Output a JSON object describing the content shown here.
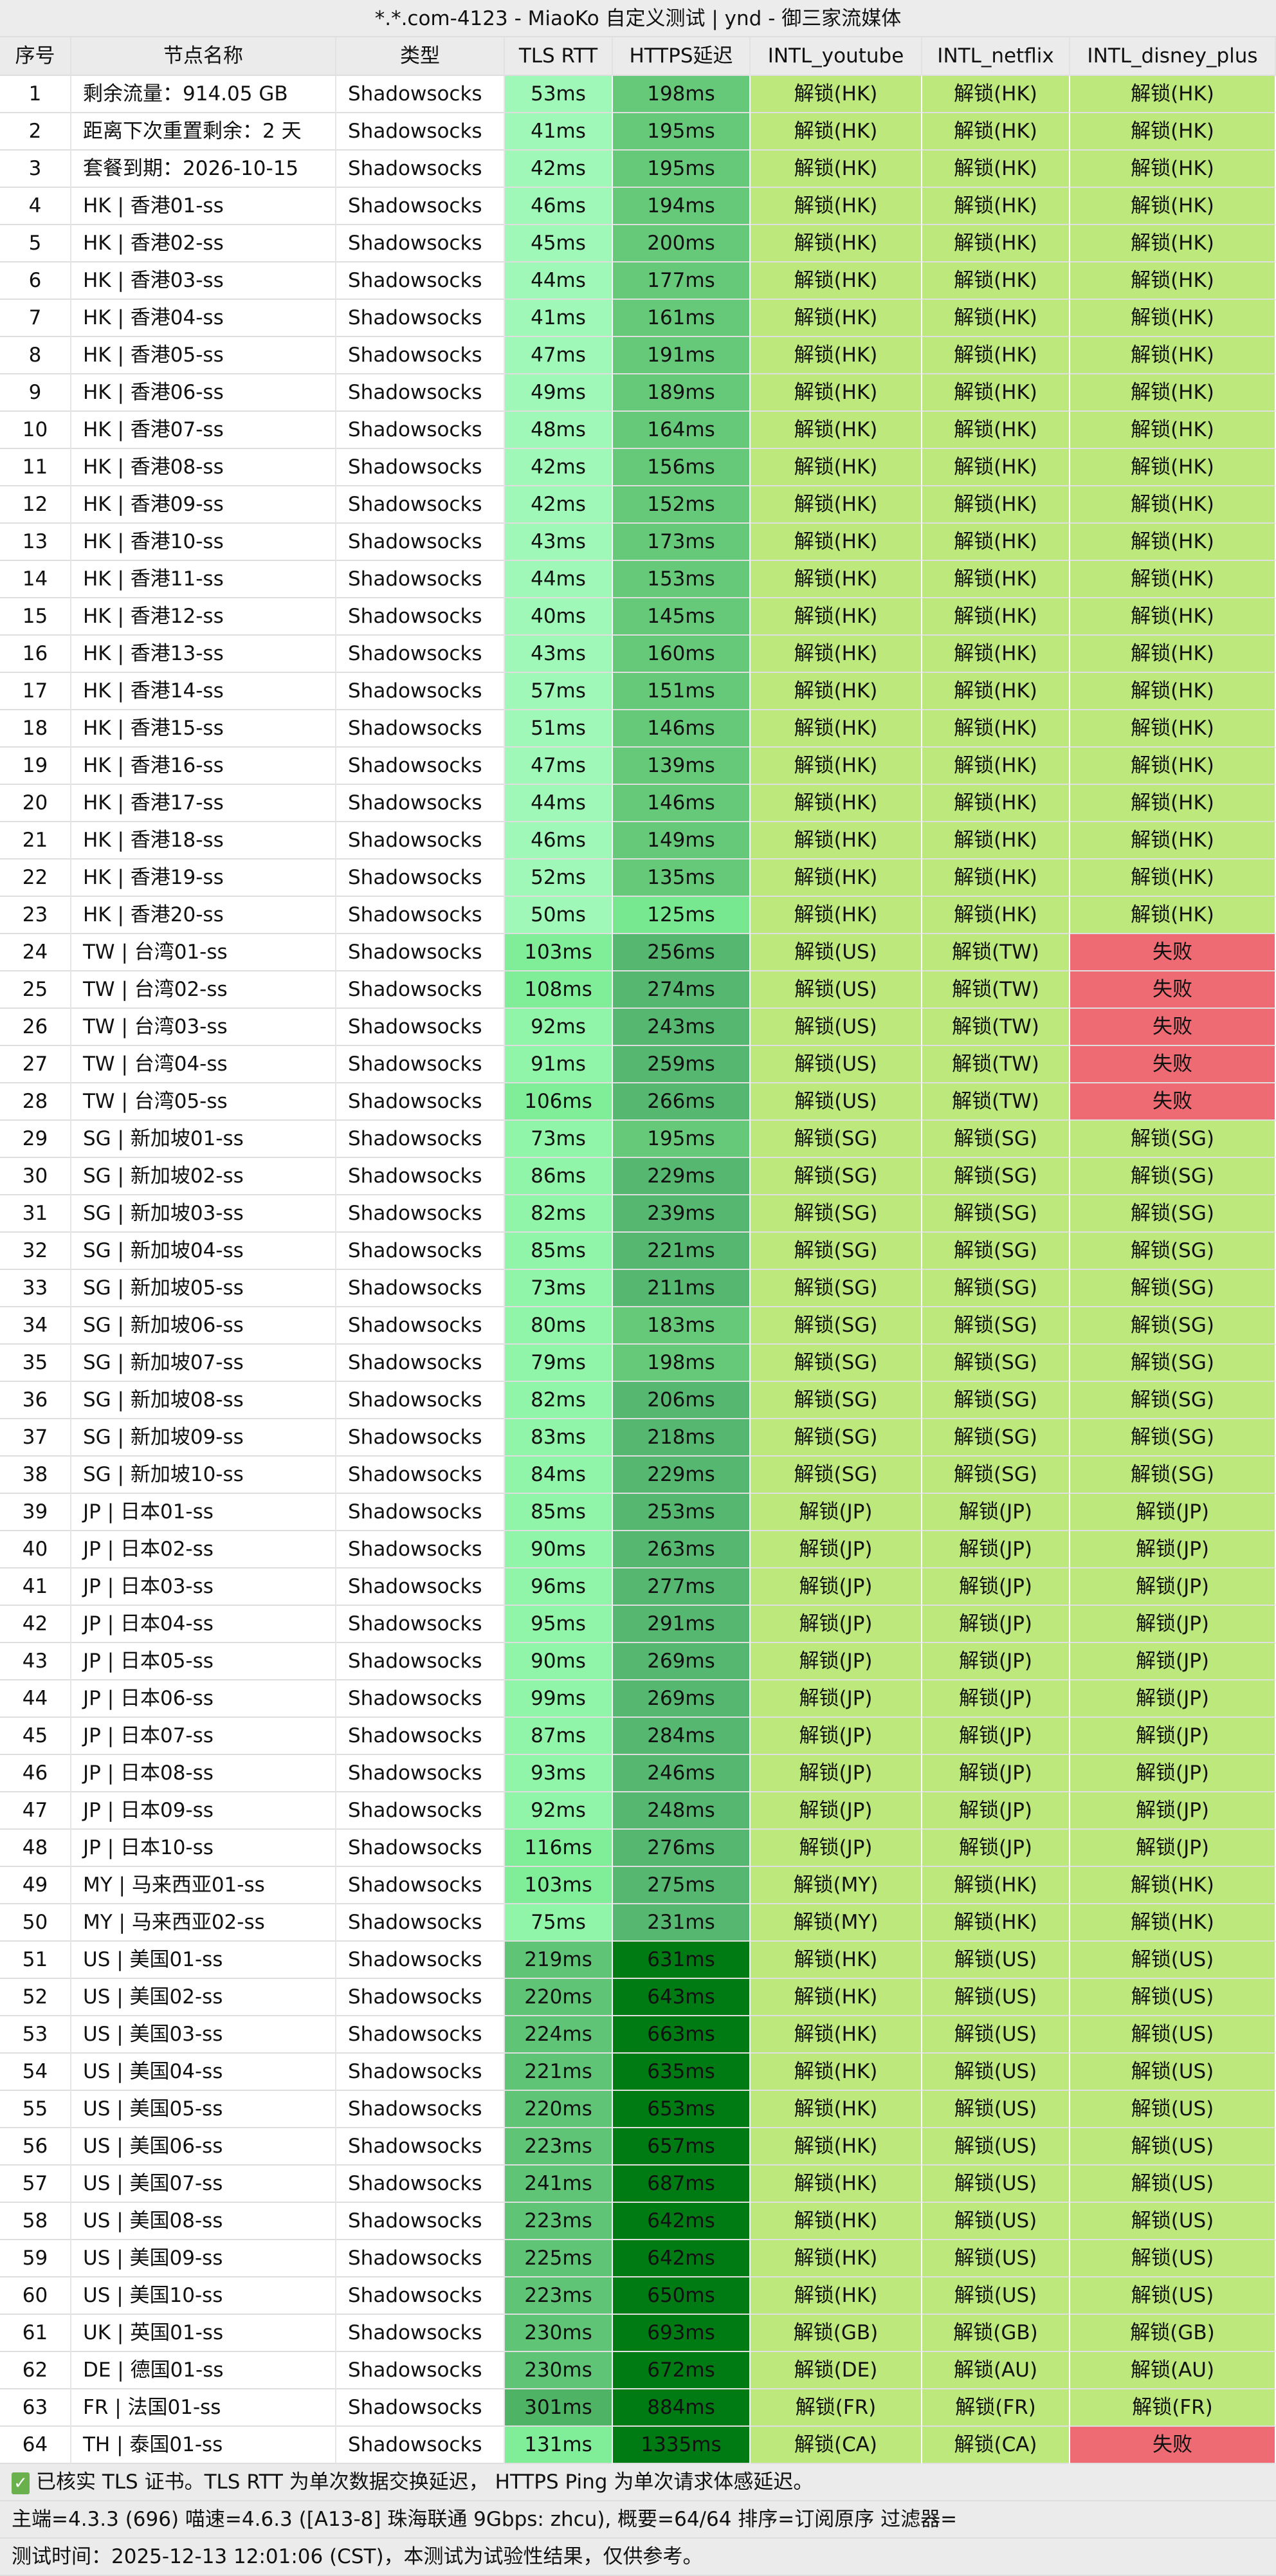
{
  "title": "*.*.com-4123 - MiaoKo 自定义测试 | ynd - 御三家流媒体",
  "headers": [
    "序号",
    "节点名称",
    "类型",
    "TLS RTT",
    "HTTPS延迟",
    "INTL_youtube",
    "INTL_netflix",
    "INTL_disney_plus"
  ],
  "colors": {
    "tls_fast": "#a0f8b8",
    "tls_good": "#90f5a8",
    "tls_mid": "#80ee98",
    "tls_slow": "#60c477",
    "tls_slower": "#4fb366",
    "https_fast": "#78e890",
    "https_good": "#66c97a",
    "https_mid": "#56b870",
    "https_slow": "#007a12",
    "unlock": "#bde87c",
    "fail": "#ee6b73",
    "header_bg": "#ebebeb"
  },
  "rows": [
    [
      "1",
      "剩余流量：914.05 GB",
      "Shadowsocks",
      "53ms",
      "198ms",
      "解锁(HK)",
      "解锁(HK)",
      "解锁(HK)"
    ],
    [
      "2",
      "距离下次重置剩余：2 天",
      "Shadowsocks",
      "41ms",
      "195ms",
      "解锁(HK)",
      "解锁(HK)",
      "解锁(HK)"
    ],
    [
      "3",
      "套餐到期：2026-10-15",
      "Shadowsocks",
      "42ms",
      "195ms",
      "解锁(HK)",
      "解锁(HK)",
      "解锁(HK)"
    ],
    [
      "4",
      "HK | 香港01-ss",
      "Shadowsocks",
      "46ms",
      "194ms",
      "解锁(HK)",
      "解锁(HK)",
      "解锁(HK)"
    ],
    [
      "5",
      "HK | 香港02-ss",
      "Shadowsocks",
      "45ms",
      "200ms",
      "解锁(HK)",
      "解锁(HK)",
      "解锁(HK)"
    ],
    [
      "6",
      "HK | 香港03-ss",
      "Shadowsocks",
      "44ms",
      "177ms",
      "解锁(HK)",
      "解锁(HK)",
      "解锁(HK)"
    ],
    [
      "7",
      "HK | 香港04-ss",
      "Shadowsocks",
      "41ms",
      "161ms",
      "解锁(HK)",
      "解锁(HK)",
      "解锁(HK)"
    ],
    [
      "8",
      "HK | 香港05-ss",
      "Shadowsocks",
      "47ms",
      "191ms",
      "解锁(HK)",
      "解锁(HK)",
      "解锁(HK)"
    ],
    [
      "9",
      "HK | 香港06-ss",
      "Shadowsocks",
      "49ms",
      "189ms",
      "解锁(HK)",
      "解锁(HK)",
      "解锁(HK)"
    ],
    [
      "10",
      "HK | 香港07-ss",
      "Shadowsocks",
      "48ms",
      "164ms",
      "解锁(HK)",
      "解锁(HK)",
      "解锁(HK)"
    ],
    [
      "11",
      "HK | 香港08-ss",
      "Shadowsocks",
      "42ms",
      "156ms",
      "解锁(HK)",
      "解锁(HK)",
      "解锁(HK)"
    ],
    [
      "12",
      "HK | 香港09-ss",
      "Shadowsocks",
      "42ms",
      "152ms",
      "解锁(HK)",
      "解锁(HK)",
      "解锁(HK)"
    ],
    [
      "13",
      "HK | 香港10-ss",
      "Shadowsocks",
      "43ms",
      "173ms",
      "解锁(HK)",
      "解锁(HK)",
      "解锁(HK)"
    ],
    [
      "14",
      "HK | 香港11-ss",
      "Shadowsocks",
      "44ms",
      "153ms",
      "解锁(HK)",
      "解锁(HK)",
      "解锁(HK)"
    ],
    [
      "15",
      "HK | 香港12-ss",
      "Shadowsocks",
      "40ms",
      "145ms",
      "解锁(HK)",
      "解锁(HK)",
      "解锁(HK)"
    ],
    [
      "16",
      "HK | 香港13-ss",
      "Shadowsocks",
      "43ms",
      "160ms",
      "解锁(HK)",
      "解锁(HK)",
      "解锁(HK)"
    ],
    [
      "17",
      "HK | 香港14-ss",
      "Shadowsocks",
      "57ms",
      "151ms",
      "解锁(HK)",
      "解锁(HK)",
      "解锁(HK)"
    ],
    [
      "18",
      "HK | 香港15-ss",
      "Shadowsocks",
      "51ms",
      "146ms",
      "解锁(HK)",
      "解锁(HK)",
      "解锁(HK)"
    ],
    [
      "19",
      "HK | 香港16-ss",
      "Shadowsocks",
      "47ms",
      "139ms",
      "解锁(HK)",
      "解锁(HK)",
      "解锁(HK)"
    ],
    [
      "20",
      "HK | 香港17-ss",
      "Shadowsocks",
      "44ms",
      "146ms",
      "解锁(HK)",
      "解锁(HK)",
      "解锁(HK)"
    ],
    [
      "21",
      "HK | 香港18-ss",
      "Shadowsocks",
      "46ms",
      "149ms",
      "解锁(HK)",
      "解锁(HK)",
      "解锁(HK)"
    ],
    [
      "22",
      "HK | 香港19-ss",
      "Shadowsocks",
      "52ms",
      "135ms",
      "解锁(HK)",
      "解锁(HK)",
      "解锁(HK)"
    ],
    [
      "23",
      "HK | 香港20-ss",
      "Shadowsocks",
      "50ms",
      "125ms",
      "解锁(HK)",
      "解锁(HK)",
      "解锁(HK)"
    ],
    [
      "24",
      "TW | 台湾01-ss",
      "Shadowsocks",
      "103ms",
      "256ms",
      "解锁(US)",
      "解锁(TW)",
      "失败"
    ],
    [
      "25",
      "TW | 台湾02-ss",
      "Shadowsocks",
      "108ms",
      "274ms",
      "解锁(US)",
      "解锁(TW)",
      "失败"
    ],
    [
      "26",
      "TW | 台湾03-ss",
      "Shadowsocks",
      "92ms",
      "243ms",
      "解锁(US)",
      "解锁(TW)",
      "失败"
    ],
    [
      "27",
      "TW | 台湾04-ss",
      "Shadowsocks",
      "91ms",
      "259ms",
      "解锁(US)",
      "解锁(TW)",
      "失败"
    ],
    [
      "28",
      "TW | 台湾05-ss",
      "Shadowsocks",
      "106ms",
      "266ms",
      "解锁(US)",
      "解锁(TW)",
      "失败"
    ],
    [
      "29",
      "SG | 新加坡01-ss",
      "Shadowsocks",
      "73ms",
      "195ms",
      "解锁(SG)",
      "解锁(SG)",
      "解锁(SG)"
    ],
    [
      "30",
      "SG | 新加坡02-ss",
      "Shadowsocks",
      "86ms",
      "229ms",
      "解锁(SG)",
      "解锁(SG)",
      "解锁(SG)"
    ],
    [
      "31",
      "SG | 新加坡03-ss",
      "Shadowsocks",
      "82ms",
      "239ms",
      "解锁(SG)",
      "解锁(SG)",
      "解锁(SG)"
    ],
    [
      "32",
      "SG | 新加坡04-ss",
      "Shadowsocks",
      "85ms",
      "221ms",
      "解锁(SG)",
      "解锁(SG)",
      "解锁(SG)"
    ],
    [
      "33",
      "SG | 新加坡05-ss",
      "Shadowsocks",
      "73ms",
      "211ms",
      "解锁(SG)",
      "解锁(SG)",
      "解锁(SG)"
    ],
    [
      "34",
      "SG | 新加坡06-ss",
      "Shadowsocks",
      "80ms",
      "183ms",
      "解锁(SG)",
      "解锁(SG)",
      "解锁(SG)"
    ],
    [
      "35",
      "SG | 新加坡07-ss",
      "Shadowsocks",
      "79ms",
      "198ms",
      "解锁(SG)",
      "解锁(SG)",
      "解锁(SG)"
    ],
    [
      "36",
      "SG | 新加坡08-ss",
      "Shadowsocks",
      "82ms",
      "206ms",
      "解锁(SG)",
      "解锁(SG)",
      "解锁(SG)"
    ],
    [
      "37",
      "SG | 新加坡09-ss",
      "Shadowsocks",
      "83ms",
      "218ms",
      "解锁(SG)",
      "解锁(SG)",
      "解锁(SG)"
    ],
    [
      "38",
      "SG | 新加坡10-ss",
      "Shadowsocks",
      "84ms",
      "229ms",
      "解锁(SG)",
      "解锁(SG)",
      "解锁(SG)"
    ],
    [
      "39",
      "JP | 日本01-ss",
      "Shadowsocks",
      "85ms",
      "253ms",
      "解锁(JP)",
      "解锁(JP)",
      "解锁(JP)"
    ],
    [
      "40",
      "JP | 日本02-ss",
      "Shadowsocks",
      "90ms",
      "263ms",
      "解锁(JP)",
      "解锁(JP)",
      "解锁(JP)"
    ],
    [
      "41",
      "JP | 日本03-ss",
      "Shadowsocks",
      "96ms",
      "277ms",
      "解锁(JP)",
      "解锁(JP)",
      "解锁(JP)"
    ],
    [
      "42",
      "JP | 日本04-ss",
      "Shadowsocks",
      "95ms",
      "291ms",
      "解锁(JP)",
      "解锁(JP)",
      "解锁(JP)"
    ],
    [
      "43",
      "JP | 日本05-ss",
      "Shadowsocks",
      "90ms",
      "269ms",
      "解锁(JP)",
      "解锁(JP)",
      "解锁(JP)"
    ],
    [
      "44",
      "JP | 日本06-ss",
      "Shadowsocks",
      "99ms",
      "269ms",
      "解锁(JP)",
      "解锁(JP)",
      "解锁(JP)"
    ],
    [
      "45",
      "JP | 日本07-ss",
      "Shadowsocks",
      "87ms",
      "284ms",
      "解锁(JP)",
      "解锁(JP)",
      "解锁(JP)"
    ],
    [
      "46",
      "JP | 日本08-ss",
      "Shadowsocks",
      "93ms",
      "246ms",
      "解锁(JP)",
      "解锁(JP)",
      "解锁(JP)"
    ],
    [
      "47",
      "JP | 日本09-ss",
      "Shadowsocks",
      "92ms",
      "248ms",
      "解锁(JP)",
      "解锁(JP)",
      "解锁(JP)"
    ],
    [
      "48",
      "JP | 日本10-ss",
      "Shadowsocks",
      "116ms",
      "276ms",
      "解锁(JP)",
      "解锁(JP)",
      "解锁(JP)"
    ],
    [
      "49",
      "MY | 马来西亚01-ss",
      "Shadowsocks",
      "103ms",
      "275ms",
      "解锁(MY)",
      "解锁(HK)",
      "解锁(HK)"
    ],
    [
      "50",
      "MY | 马来西亚02-ss",
      "Shadowsocks",
      "75ms",
      "231ms",
      "解锁(MY)",
      "解锁(HK)",
      "解锁(HK)"
    ],
    [
      "51",
      "US | 美国01-ss",
      "Shadowsocks",
      "219ms",
      "631ms",
      "解锁(HK)",
      "解锁(US)",
      "解锁(US)"
    ],
    [
      "52",
      "US | 美国02-ss",
      "Shadowsocks",
      "220ms",
      "643ms",
      "解锁(HK)",
      "解锁(US)",
      "解锁(US)"
    ],
    [
      "53",
      "US | 美国03-ss",
      "Shadowsocks",
      "224ms",
      "663ms",
      "解锁(HK)",
      "解锁(US)",
      "解锁(US)"
    ],
    [
      "54",
      "US | 美国04-ss",
      "Shadowsocks",
      "221ms",
      "635ms",
      "解锁(HK)",
      "解锁(US)",
      "解锁(US)"
    ],
    [
      "55",
      "US | 美国05-ss",
      "Shadowsocks",
      "220ms",
      "653ms",
      "解锁(HK)",
      "解锁(US)",
      "解锁(US)"
    ],
    [
      "56",
      "US | 美国06-ss",
      "Shadowsocks",
      "223ms",
      "657ms",
      "解锁(HK)",
      "解锁(US)",
      "解锁(US)"
    ],
    [
      "57",
      "US | 美国07-ss",
      "Shadowsocks",
      "241ms",
      "687ms",
      "解锁(HK)",
      "解锁(US)",
      "解锁(US)"
    ],
    [
      "58",
      "US | 美国08-ss",
      "Shadowsocks",
      "223ms",
      "642ms",
      "解锁(HK)",
      "解锁(US)",
      "解锁(US)"
    ],
    [
      "59",
      "US | 美国09-ss",
      "Shadowsocks",
      "225ms",
      "642ms",
      "解锁(HK)",
      "解锁(US)",
      "解锁(US)"
    ],
    [
      "60",
      "US | 美国10-ss",
      "Shadowsocks",
      "223ms",
      "650ms",
      "解锁(HK)",
      "解锁(US)",
      "解锁(US)"
    ],
    [
      "61",
      "UK | 英国01-ss",
      "Shadowsocks",
      "230ms",
      "693ms",
      "解锁(GB)",
      "解锁(GB)",
      "解锁(GB)"
    ],
    [
      "62",
      "DE | 德国01-ss",
      "Shadowsocks",
      "230ms",
      "672ms",
      "解锁(DE)",
      "解锁(AU)",
      "解锁(AU)"
    ],
    [
      "63",
      "FR | 法国01-ss",
      "Shadowsocks",
      "301ms",
      "884ms",
      "解锁(FR)",
      "解锁(FR)",
      "解锁(FR)"
    ],
    [
      "64",
      "TH | 泰国01-ss",
      "Shadowsocks",
      "131ms",
      "1335ms",
      "解锁(CA)",
      "解锁(CA)",
      "失败"
    ]
  ],
  "footer": {
    "check_icon": "check-icon",
    "check_glyph": "✓",
    "line1": "已核实 TLS 证书。TLS RTT 为单次数据交换延迟， HTTPS Ping 为单次请求体感延迟。",
    "line2": "主端=4.3.3 (696) 喵速=4.6.3 ([A13-8] 珠海联通 9Gbps: zhcu), 概要=64/64 排序=订阅原序 过滤器=",
    "line3": "测试时间：2025-12-13 12:01:06 (CST)，本测试为试验性结果，仅供参考。"
  }
}
